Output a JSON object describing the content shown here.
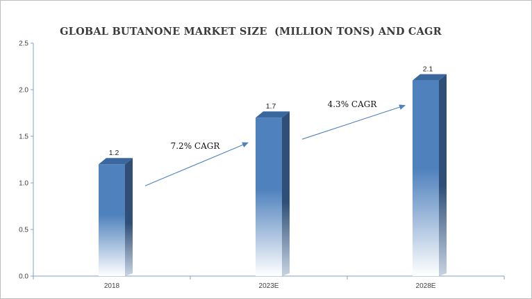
{
  "chart_data": {
    "type": "bar",
    "title": "GLOBAL BUTANONE MARKET SIZE  (MILLION TONS) AND CAGR",
    "categories": [
      "2018",
      "2023E",
      "2028E"
    ],
    "values": [
      1.2,
      1.7,
      2.1
    ],
    "data_labels": [
      "1.2",
      "1.7",
      "2.1"
    ],
    "ylim": [
      0,
      2.5
    ],
    "yticks": [
      "0.0",
      "0.5",
      "1.0",
      "1.5",
      "2.0",
      "2.5"
    ],
    "xlabel": "",
    "ylabel": "",
    "grid": false,
    "legend": "none",
    "annotations": [
      {
        "text": "7.2% CAGR",
        "from": "2018",
        "to": "2023E"
      },
      {
        "text": "4.3% CAGR",
        "from": "2023E",
        "to": "2028E"
      }
    ],
    "colors": {
      "bar_front": "#4f81bd",
      "bar_side": "#2f4f78",
      "bar_top": "#3a679e",
      "arrow": "#4f81bd",
      "axis": "#7f9fc8"
    }
  }
}
